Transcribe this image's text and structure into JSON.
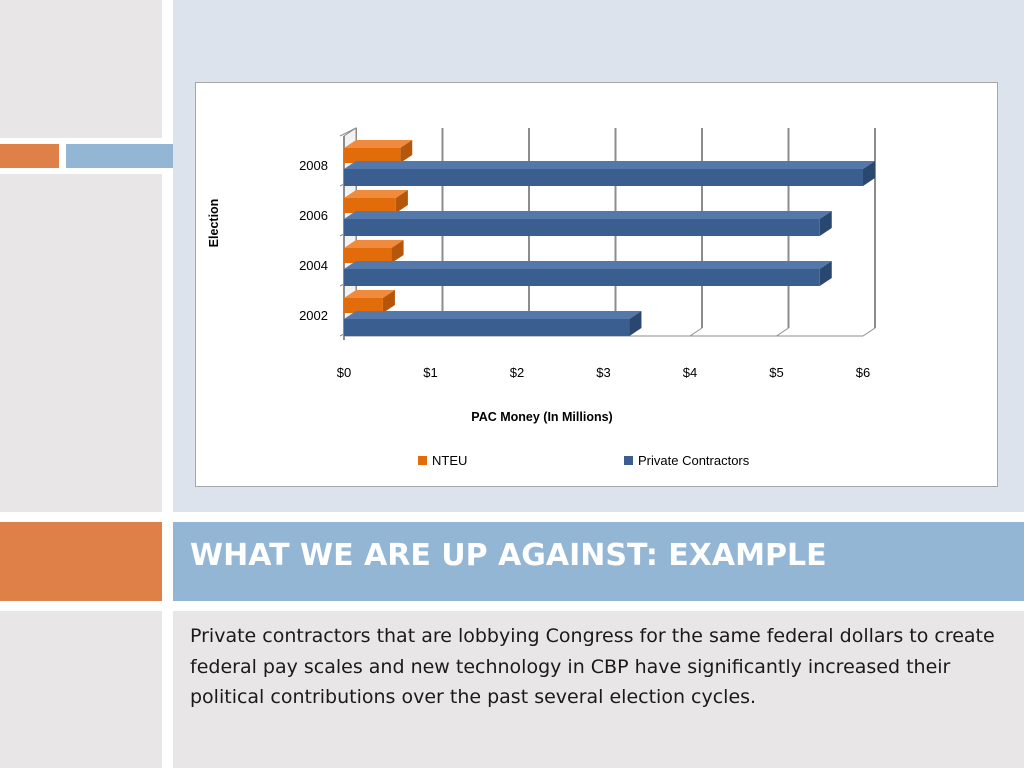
{
  "slide": {
    "title": "WHAT WE ARE UP AGAINST: EXAMPLE",
    "body": "Private contractors that are lobbying Congress for the same federal dollars to create federal pay scales and new technology in CBP have significantly increased their political contributions over the past several election cycles."
  },
  "colors": {
    "accent_orange": "#de8047",
    "accent_blue": "#93b6d5",
    "series_nteu": "#e36c0a",
    "series_contractors": "#3b5e91"
  },
  "chart_data": {
    "type": "bar",
    "orientation": "horizontal",
    "three_d": true,
    "categories": [
      "2002",
      "2004",
      "2006",
      "2008"
    ],
    "series": [
      {
        "name": "NTEU",
        "values": [
          0.45,
          0.55,
          0.6,
          0.65
        ]
      },
      {
        "name": "Private Contractors",
        "values": [
          3.3,
          5.5,
          5.5,
          6.0
        ]
      }
    ],
    "xlabel": "PAC Money (In Millions)",
    "ylabel": "Election",
    "xlim": [
      0,
      6
    ],
    "xticks": [
      "$0",
      "$1",
      "$2",
      "$3",
      "$4",
      "$5",
      "$6"
    ],
    "grid": "vertical",
    "legend": "bottom"
  }
}
